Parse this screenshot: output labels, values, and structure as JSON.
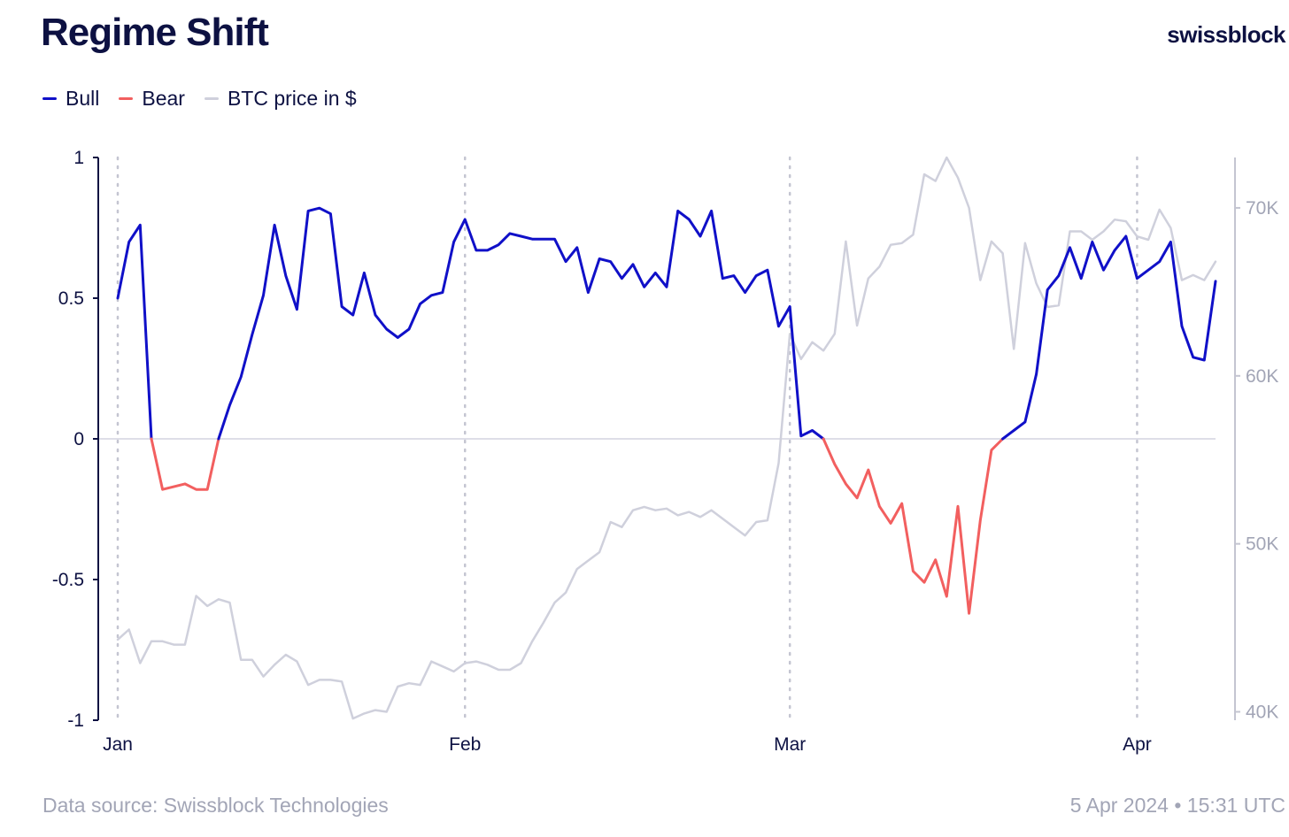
{
  "header": {
    "title": "Regime Shift",
    "brand": "swissblock"
  },
  "legend": [
    {
      "label": "Bull",
      "color": "#1010c8"
    },
    {
      "label": "Bear",
      "color": "#f25f5f"
    },
    {
      "label": "BTC price in $",
      "color": "#cfd0dc"
    }
  ],
  "footer": {
    "source": "Data source: Swissblock Technologies",
    "timestamp": "5 Apr 2024 • 15:31 UTC"
  },
  "chart_data": {
    "type": "line",
    "x_ticks": [
      "Jan",
      "Feb",
      "Mar",
      "Apr"
    ],
    "x_tick_index": [
      0,
      31,
      60,
      91
    ],
    "y_left_ticks": [
      "1",
      "0.5",
      "0",
      "-0.5",
      "-1"
    ],
    "y_left_range": [
      -1,
      1
    ],
    "y_right_ticks": [
      "70K",
      "60K",
      "50K",
      "40K"
    ],
    "y_right_range": [
      39500,
      73000
    ],
    "series": [
      {
        "name": "Regime (Bull / Bear)",
        "axis": "left",
        "colors": {
          "positive": "#1010c8",
          "negative": "#f25f5f"
        },
        "values": [
          0.5,
          0.7,
          0.76,
          0.0,
          -0.18,
          -0.17,
          -0.16,
          -0.18,
          -0.18,
          0.0,
          0.12,
          0.22,
          0.37,
          0.51,
          0.76,
          0.58,
          0.46,
          0.81,
          0.82,
          0.8,
          0.47,
          0.44,
          0.59,
          0.44,
          0.39,
          0.36,
          0.39,
          0.48,
          0.51,
          0.52,
          0.7,
          0.78,
          0.67,
          0.67,
          0.69,
          0.73,
          0.72,
          0.71,
          0.71,
          0.71,
          0.63,
          0.68,
          0.52,
          0.64,
          0.63,
          0.57,
          0.62,
          0.54,
          0.59,
          0.54,
          0.81,
          0.78,
          0.72,
          0.81,
          0.57,
          0.58,
          0.52,
          0.58,
          0.6,
          0.4,
          0.47,
          0.01,
          0.03,
          0.0,
          -0.09,
          -0.16,
          -0.21,
          -0.11,
          -0.24,
          -0.3,
          -0.23,
          -0.47,
          -0.51,
          -0.43,
          -0.56,
          -0.24,
          -0.62,
          -0.29,
          -0.04,
          0.0,
          0.03,
          0.06,
          0.23,
          0.53,
          0.58,
          0.68,
          0.57,
          0.7,
          0.6,
          0.67,
          0.72,
          0.57,
          0.6,
          0.63,
          0.7,
          0.4,
          0.29,
          0.28,
          0.56
        ]
      },
      {
        "name": "BTC price in $",
        "axis": "right",
        "color": "#cfd0dc",
        "values": [
          44300,
          44900,
          42900,
          44200,
          44200,
          44000,
          44000,
          46900,
          46300,
          46700,
          46500,
          43100,
          43100,
          42100,
          42800,
          43400,
          43000,
          41600,
          41900,
          41900,
          41800,
          39600,
          39900,
          40100,
          40000,
          41500,
          41700,
          41600,
          43000,
          42700,
          42400,
          42900,
          43000,
          42800,
          42500,
          42500,
          42900,
          44200,
          45300,
          46500,
          47100,
          48500,
          49000,
          49500,
          51300,
          51000,
          52000,
          52200,
          52000,
          52100,
          51700,
          51900,
          51600,
          52000,
          51500,
          51000,
          50500,
          51300,
          51400,
          54800,
          62500,
          61000,
          62000,
          61500,
          62500,
          68000,
          63000,
          65800,
          66500,
          67800,
          67900,
          68400,
          72000,
          71600,
          73000,
          71800,
          70000,
          65700,
          68000,
          67300,
          61600,
          67900,
          65500,
          64100,
          64200,
          68600,
          68600,
          68100,
          68600,
          69300,
          69200,
          68300,
          68100,
          69900,
          68800,
          65700,
          66000,
          65700,
          66800
        ]
      }
    ]
  }
}
